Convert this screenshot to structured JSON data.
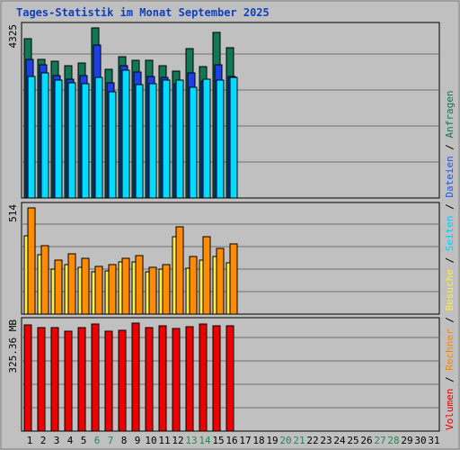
{
  "chart_data": {
    "type": "bar",
    "title": "Tages-Statistik im Monat September 2025",
    "days": [
      "1",
      "2",
      "3",
      "4",
      "5",
      "6",
      "7",
      "8",
      "9",
      "10",
      "11",
      "12",
      "13",
      "14",
      "15",
      "16",
      "17",
      "18",
      "19",
      "20",
      "21",
      "22",
      "23",
      "24",
      "25",
      "26",
      "27",
      "28",
      "29",
      "30",
      "31"
    ],
    "weekend_days": [
      "6",
      "7",
      "13",
      "14",
      "20",
      "21",
      "27",
      "28"
    ],
    "panels": [
      {
        "ymax_label": "4325",
        "ymax": 4325,
        "series": [
          {
            "name": "Anfragen",
            "values": [
              4061,
              3514,
              3476,
              3367,
              3426,
              4325,
              3276,
              3603,
              3500,
              3497,
              3368,
              3228,
              3795,
              3337,
              4218,
              3828
            ]
          },
          {
            "name": "Dateien",
            "values": [
              3519,
              3392,
              3114,
              3029,
              3114,
              3881,
              2937,
              3368,
              3195,
              3100,
              3064,
              2916,
              3177,
              2980,
              3392,
              3084
            ]
          },
          {
            "name": "Seiten",
            "values": [
              3099,
              3178,
              3001,
              2937,
              2895,
              3074,
              2698,
              3240,
              2889,
              2895,
              3001,
              3001,
              2810,
              3021,
              3001,
              3064
            ]
          }
        ]
      },
      {
        "ymax_label": "514",
        "ymax": 514,
        "series": [
          {
            "name": "Besuche",
            "values": [
              381,
              289,
              219,
              240,
              228,
              206,
              211,
              252,
              253,
              205,
              216,
              376,
              223,
              263,
              278,
              248
            ]
          },
          {
            "name": "Rechner",
            "values": [
              514,
              331,
              260,
              291,
              270,
              232,
              238,
              268,
              284,
              228,
              240,
              424,
              280,
              374,
              317,
              339
            ]
          }
        ]
      },
      {
        "ymax_label": "325.36 MB",
        "ymax": 325.36,
        "series": [
          {
            "name": "Volumen",
            "values": [
              319,
              312,
              312,
              300,
              312,
              323,
              300,
              305,
              325,
              313,
              318,
              308,
              314,
              323,
              317,
              316
            ]
          }
        ]
      }
    ],
    "legend": [
      {
        "name": "Volumen",
        "color": "#ee0000"
      },
      {
        "name": "Rechner",
        "color": "#ff8800"
      },
      {
        "name": "Besuche",
        "color": "#ffee44"
      },
      {
        "name": "Seiten",
        "color": "#00d0ff"
      },
      {
        "name": "Dateien",
        "color": "#2255ee"
      },
      {
        "name": "Anfragen",
        "color": "#117755"
      }
    ],
    "legend_separator": "/",
    "colors": {
      "Anfragen": "#117755",
      "Dateien": "#1e3ee6",
      "Seiten": "#00dcff",
      "Besuche": "#ffee44",
      "Rechner": "#ff8c00",
      "Volumen": "#ee0000",
      "plot_bg": "#c0c0c0",
      "title": "#1040c0",
      "weekday": "#000000",
      "weekend": "#228855"
    },
    "grid": true
  }
}
